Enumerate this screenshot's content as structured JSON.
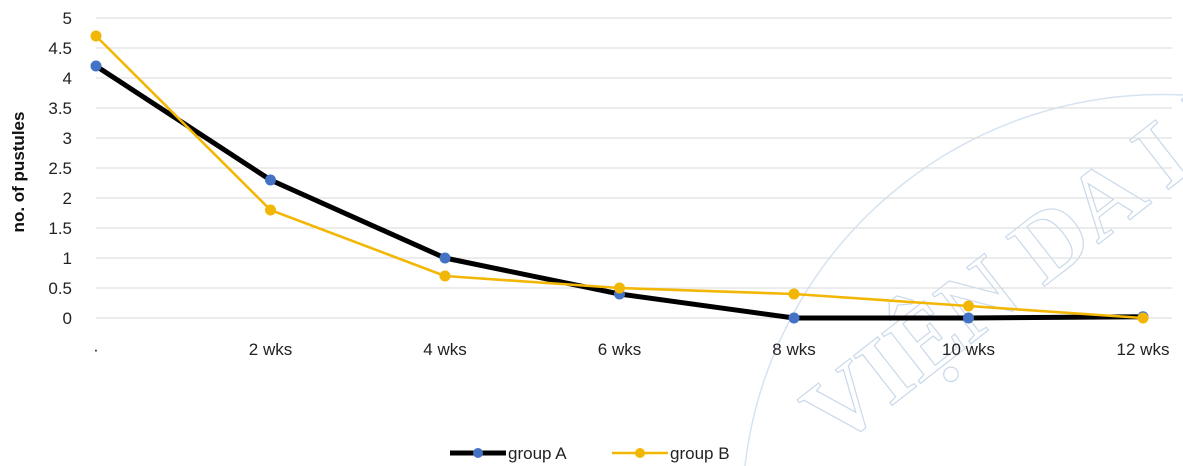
{
  "chart_data": {
    "type": "line",
    "title": "",
    "xlabel": "",
    "ylabel": "no. of pustules",
    "categories": [
      "·",
      "2 wks",
      "4 wks",
      "6 wks",
      "8 wks",
      "10 wks",
      "12 wks"
    ],
    "ylim": [
      0,
      5
    ],
    "yticks": [
      "0",
      "0.5",
      "1",
      "1.5",
      "2",
      "2.5",
      "3",
      "3.5",
      "4",
      "4.5",
      "5"
    ],
    "grid": true,
    "legend_position": "bottom",
    "series": [
      {
        "name": "group A",
        "values": [
          4.2,
          2.3,
          1.0,
          0.4,
          0.0,
          0.0,
          0.02
        ],
        "line_color": "#000000",
        "marker_color": "#4472c4"
      },
      {
        "name": "group B",
        "values": [
          4.7,
          1.8,
          0.7,
          0.5,
          0.4,
          0.2,
          0.0
        ],
        "line_color": "#f2b705",
        "marker_color": "#f2b705"
      }
    ]
  },
  "watermark_text": "VIỆN DA LI"
}
